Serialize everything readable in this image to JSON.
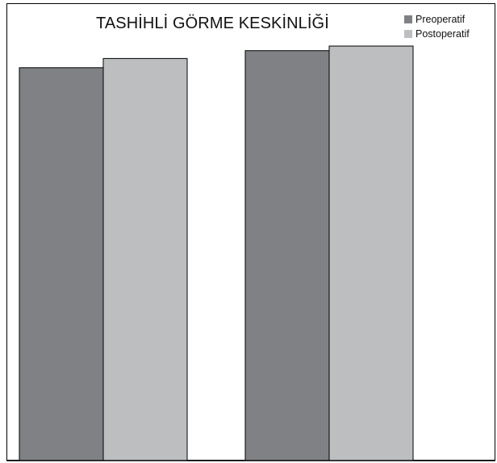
{
  "chart_data": {
    "type": "bar",
    "title": "TASHİHLİ GÖRME KESKİNLİĞİ",
    "categories": [
      "",
      ""
    ],
    "series": [
      {
        "name": "Preoperatif",
        "values": [
          0.853,
          0.89
        ],
        "color": "#808184"
      },
      {
        "name": "Postoperatif",
        "values": [
          0.873,
          0.9
        ],
        "color": "#bcbec0"
      }
    ],
    "ylim": [
      0,
      1
    ],
    "grid": false,
    "legend_position": "top-right",
    "xlabel": "",
    "ylabel": ""
  }
}
